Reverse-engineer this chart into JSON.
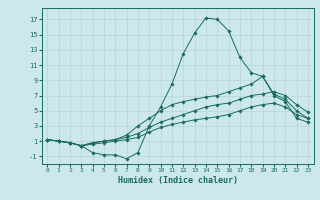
{
  "xlabel": "Humidex (Indice chaleur)",
  "bg_color": "#cce8ec",
  "line_color": "#1a6b60",
  "grid_color": "#b8d4d8",
  "xlim": [
    -0.5,
    23.5
  ],
  "ylim": [
    -2.0,
    18.5
  ],
  "xticks": [
    0,
    1,
    2,
    3,
    4,
    5,
    6,
    7,
    8,
    9,
    10,
    11,
    12,
    13,
    14,
    15,
    16,
    17,
    18,
    19,
    20,
    21,
    22,
    23
  ],
  "yticks": [
    -1,
    1,
    3,
    5,
    7,
    9,
    11,
    13,
    15,
    17
  ],
  "series": [
    [
      1.2,
      1.0,
      0.8,
      0.4,
      -0.5,
      -0.8,
      -0.8,
      -1.3,
      -0.5,
      3.0,
      5.5,
      8.5,
      12.5,
      15.2,
      17.2,
      17.0,
      15.5,
      12.0,
      10.0,
      9.5,
      7.0,
      6.2,
      4.0,
      3.5
    ],
    [
      1.2,
      1.0,
      0.8,
      0.4,
      0.8,
      1.0,
      1.2,
      1.8,
      3.0,
      4.0,
      5.0,
      5.8,
      6.2,
      6.5,
      6.8,
      7.0,
      7.5,
      8.0,
      8.5,
      9.5,
      7.2,
      6.5,
      5.0,
      4.0
    ],
    [
      1.2,
      1.0,
      0.8,
      0.4,
      0.8,
      1.0,
      1.2,
      1.5,
      2.0,
      2.8,
      3.5,
      4.0,
      4.5,
      5.0,
      5.5,
      5.8,
      6.0,
      6.5,
      7.0,
      7.2,
      7.5,
      7.0,
      5.8,
      4.8
    ],
    [
      1.2,
      1.0,
      0.8,
      0.4,
      0.6,
      0.8,
      1.0,
      1.2,
      1.5,
      2.2,
      2.8,
      3.2,
      3.5,
      3.8,
      4.0,
      4.2,
      4.5,
      5.0,
      5.5,
      5.8,
      6.0,
      5.5,
      4.5,
      4.0
    ]
  ]
}
